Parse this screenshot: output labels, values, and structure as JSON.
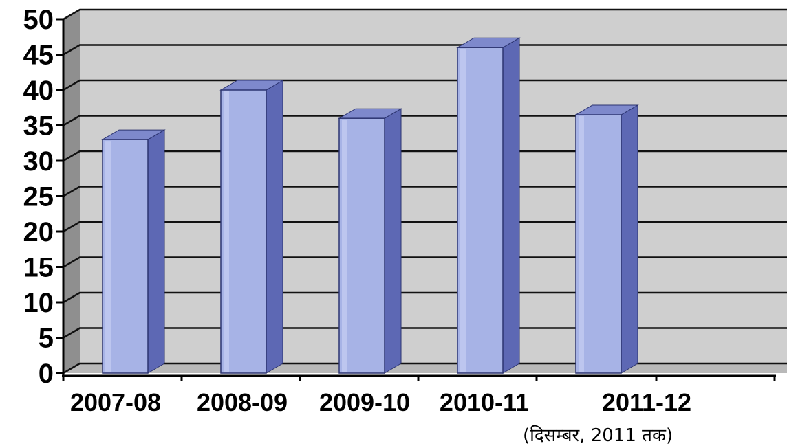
{
  "chart_data": {
    "type": "bar",
    "categories": [
      "2007-08",
      "2008-09",
      "2009-10",
      "2010-11",
      "2011-12"
    ],
    "values": [
      33,
      40,
      36,
      46,
      36.5
    ],
    "ylim": [
      0,
      50
    ],
    "yticks": [
      "0",
      "5",
      "10",
      "15",
      "20",
      "25",
      "30",
      "35",
      "40",
      "45",
      "50"
    ],
    "title": "",
    "xlabel": "",
    "ylabel": "",
    "grid": true,
    "style": "3d",
    "colors": {
      "bar_front": "#a7b3e6",
      "bar_side": "#5d68b4",
      "bar_top": "#7e89cc",
      "plot_bg": "#cfcfcf",
      "wall": "#8f8f8f",
      "grid": "#111111"
    }
  },
  "annotation": "(दिसम्बर, 2011 तक)"
}
